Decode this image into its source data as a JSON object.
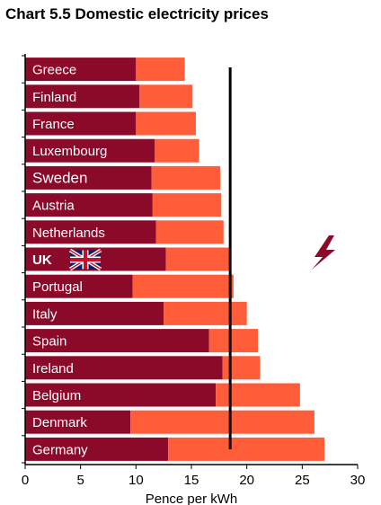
{
  "chart_data": {
    "type": "bar",
    "stacked": true,
    "orientation": "horizontal",
    "title": "Chart 5.5 Domestic electricity prices",
    "xlabel": "Pence per kWh",
    "ylabel": "",
    "xlim": [
      0,
      30
    ],
    "xticks": [
      "0",
      "5",
      "10",
      "15",
      "20",
      "25",
      "30"
    ],
    "categories": [
      "Greece",
      "Finland",
      "France",
      "Luxembourg",
      "Sweden",
      "Austria",
      "Netherlands",
      "UK",
      "Portugal",
      "Italy",
      "Spain",
      "Ireland",
      "Belgium",
      "Denmark",
      "Germany"
    ],
    "series": [
      {
        "color": "#8b0a2a",
        "values": [
          10.0,
          10.3,
          10.0,
          11.7,
          11.4,
          11.5,
          11.8,
          12.7,
          9.7,
          12.5,
          16.6,
          17.8,
          17.2,
          9.5,
          12.9
        ]
      },
      {
        "color": "#ff5c3a",
        "values": [
          4.4,
          4.8,
          5.4,
          4.0,
          6.2,
          6.2,
          6.1,
          5.8,
          9.1,
          7.5,
          4.4,
          3.4,
          7.6,
          16.6,
          14.1
        ]
      }
    ],
    "reference_line": 18.5,
    "reference_line_color": "#000000",
    "uk_flag_icon": "union-jack-icon",
    "lightning_icon": "lightning-bolt-icon",
    "lightning_color": "#8b0a2a"
  }
}
